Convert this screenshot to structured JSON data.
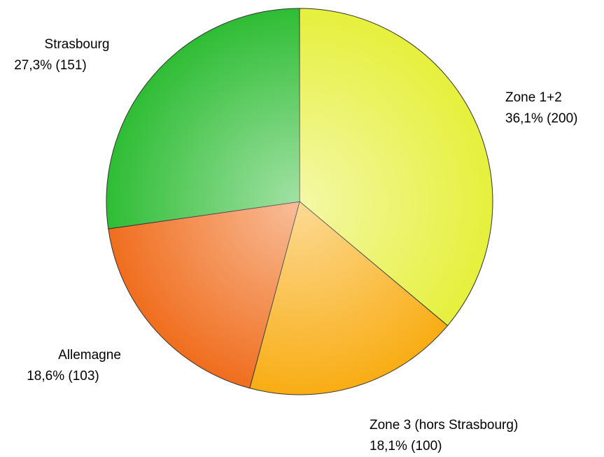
{
  "chart_data": {
    "type": "pie",
    "categories": [
      "Zone 1+2",
      "Zone 3 (hors Strasbourg)",
      "Allemagne",
      "Strasbourg"
    ],
    "values": [
      200,
      100,
      103,
      151
    ],
    "value_labels": [
      "36,1% (200)",
      "18,1% (100)",
      "18,6% (103)",
      "27,3% (151)"
    ],
    "colors": [
      "#e6f03c",
      "#f9ad14",
      "#f06e1e",
      "#2fbd35"
    ]
  }
}
